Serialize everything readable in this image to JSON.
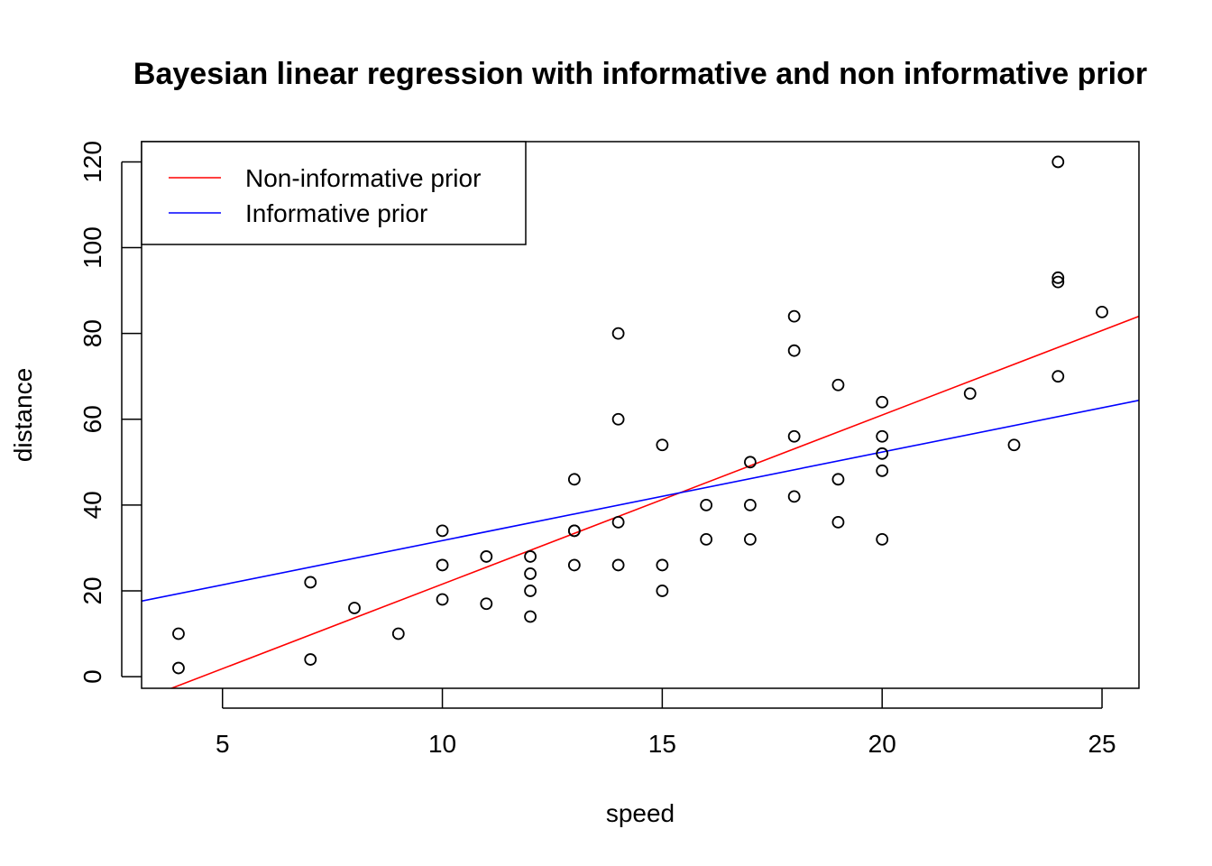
{
  "chart_data": {
    "type": "scatter",
    "title": "Bayesian linear regression with informative and non informative prior",
    "xlabel": "speed",
    "ylabel": "distance",
    "xlim": [
      3.16,
      25.84
    ],
    "ylim": [
      -2.72,
      124.72
    ],
    "x_ticks": [
      "5",
      "10",
      "15",
      "20",
      "25"
    ],
    "y_ticks": [
      "0",
      "20",
      "40",
      "60",
      "80",
      "100",
      "120"
    ],
    "grid": false,
    "legend_position": "top-left",
    "points": {
      "x": [
        4,
        4,
        7,
        7,
        8,
        9,
        10,
        10,
        10,
        11,
        11,
        12,
        12,
        12,
        12,
        13,
        13,
        13,
        13,
        14,
        14,
        14,
        14,
        15,
        15,
        15,
        16,
        16,
        17,
        17,
        17,
        18,
        18,
        18,
        18,
        19,
        19,
        19,
        20,
        20,
        20,
        20,
        20,
        22,
        23,
        24,
        24,
        24,
        24,
        25
      ],
      "y": [
        2,
        10,
        4,
        22,
        16,
        10,
        18,
        26,
        34,
        17,
        28,
        14,
        20,
        24,
        28,
        26,
        34,
        34,
        46,
        26,
        36,
        60,
        80,
        20,
        26,
        54,
        32,
        40,
        32,
        40,
        50,
        42,
        56,
        76,
        84,
        36,
        46,
        68,
        32,
        48,
        52,
        56,
        64,
        66,
        54,
        70,
        92,
        93,
        120,
        85
      ]
    },
    "series": [
      {
        "name": "Non-informative prior",
        "type": "line",
        "color": "#ff0000",
        "x": [
          3.16,
          25.84
        ],
        "y": [
          -5.4,
          84.0
        ]
      },
      {
        "name": "Informative prior",
        "type": "line",
        "color": "#0000ff",
        "x": [
          3.16,
          25.84
        ],
        "y": [
          17.6,
          64.4
        ]
      }
    ]
  }
}
